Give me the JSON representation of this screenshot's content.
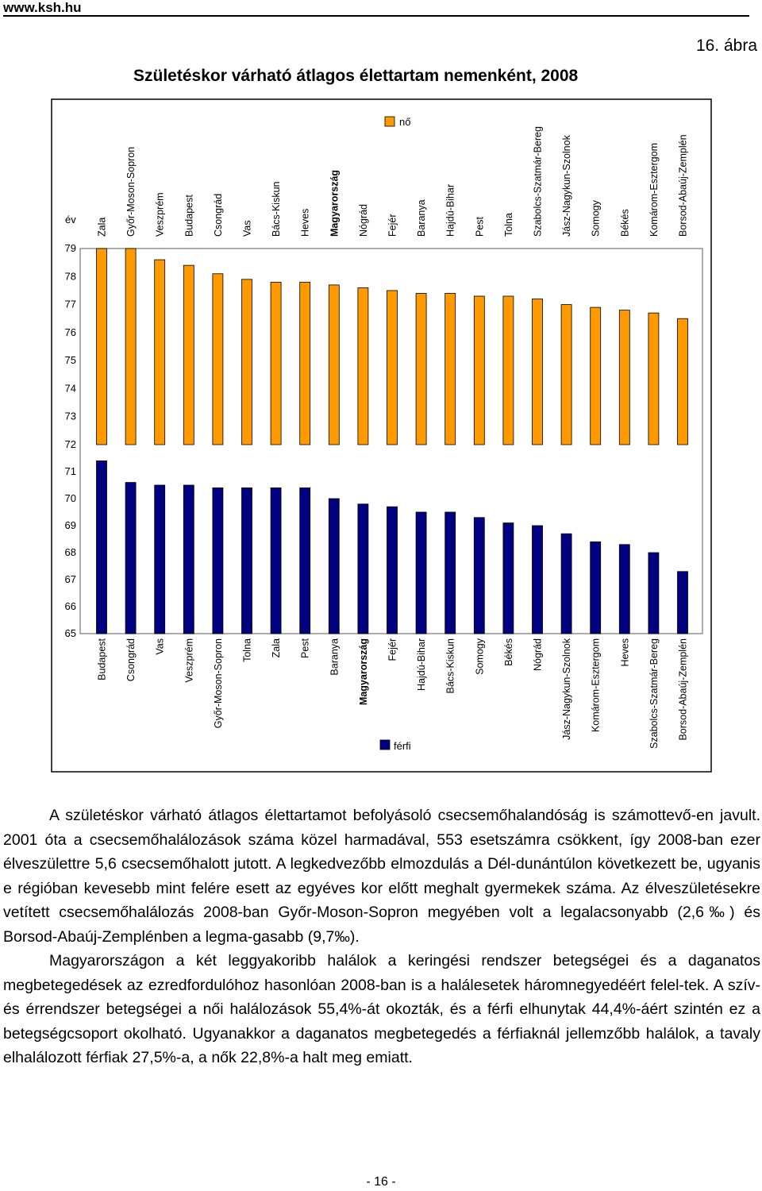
{
  "header": {
    "site": "www.ksh.hu",
    "figure_label": "16. ábra"
  },
  "chart_data": {
    "type": "bar",
    "title": "Születéskor várható átlagos élettartam nemenként, 2008",
    "ylabel": "év",
    "colors": {
      "female": "#FF9900",
      "male": "#000080"
    },
    "panels": [
      {
        "name": "nő",
        "ylim": [
          72,
          79
        ],
        "ticks": [
          "79",
          "78",
          "77",
          "76",
          "75",
          "74",
          "73",
          "72"
        ],
        "categories": [
          "Zala",
          "Győr-Moson-Sopron",
          "Veszprém",
          "Budapest",
          "Csongrád",
          "Vas",
          "Bács-Kiskun",
          "Heves",
          "Magyarország",
          "Nógrád",
          "Fejér",
          "Baranya",
          "Hajdú-Bihar",
          "Pest",
          "Tolna",
          "Szabolcs-Szatmár-Bereg",
          "Jász-Nagykun-Szolnok",
          "Somogy",
          "Békés",
          "Komárom-Esztergom",
          "Borsod-Abaúj-Zemplén"
        ],
        "values": [
          79.0,
          79.0,
          78.6,
          78.4,
          78.1,
          77.9,
          77.8,
          77.8,
          77.7,
          77.6,
          77.5,
          77.4,
          77.4,
          77.3,
          77.3,
          77.2,
          77.0,
          76.9,
          76.8,
          76.7,
          76.5
        ]
      },
      {
        "name": "férfi",
        "ylim": [
          65,
          72
        ],
        "ticks": [
          "71",
          "70",
          "69",
          "68",
          "67",
          "66",
          "65"
        ],
        "categories": [
          "Budapest",
          "Csongrád",
          "Vas",
          "Veszprém",
          "Győr-Moson-Sopron",
          "Tolna",
          "Zala",
          "Pest",
          "Baranya",
          "Magyarország",
          "Fejér",
          "Hajdú-Bihar",
          "Bács-Kiskun",
          "Somogy",
          "Békés",
          "Nógrád",
          "Jász-Nagykun-Szolnok",
          "Komárom-Esztergom",
          "Heves",
          "Szabolcs-Szatmár-Bereg",
          "Borsod-Abaúj-Zemplén"
        ],
        "values": [
          71.4,
          70.6,
          70.5,
          70.5,
          70.4,
          70.4,
          70.4,
          70.4,
          70.0,
          69.8,
          69.7,
          69.5,
          69.5,
          69.3,
          69.1,
          69.0,
          68.7,
          68.4,
          68.3,
          68.0,
          67.3
        ]
      }
    ]
  },
  "body": {
    "paragraphs": [
      "A születéskor várható átlagos élettartamot befolyásoló csecsemőhalandóság is számottevő-en javult. 2001 óta a csecsemőhalálozások száma közel harmadával, 553 esetszámra csökkent, így 2008-ban ezer élveszülettre 5,6 csecsemőhalott jutott. A legkedvezőbb elmozdulás a Dél-dunántúlon következett be, ugyanis e régióban kevesebb mint felére esett az egyéves kor előtt meghalt gyermekek száma. Az élveszületésekre vetített csecsemőhalálozás 2008-ban Győr-Moson-Sopron megyében volt a legalacsonyabb (2,6‰) és Borsod-Abaúj-Zemplénben a legma-gasabb (9,7‰).",
      "Magyarországon a két leggyakoribb halálok a keringési rendszer betegségei és a daganatos megbetegedések az ezredfordulóhoz hasonlóan 2008-ban is a halálesetek háromnegyedéért felel-tek. A szív- és érrendszer betegségei a női halálozások 55,4%-át okozták, és a férfi elhunytak 44,4%-áért szintén ez a betegségcsoport okolható. Ugyanakkor a daganatos megbetegedés a férfiaknál jellemzőbb halálok, a tavaly elhalálozott férfiak 27,5%-a, a nők 22,8%-a halt meg emiatt."
    ]
  },
  "footer": {
    "page_number": "- 16 -"
  }
}
